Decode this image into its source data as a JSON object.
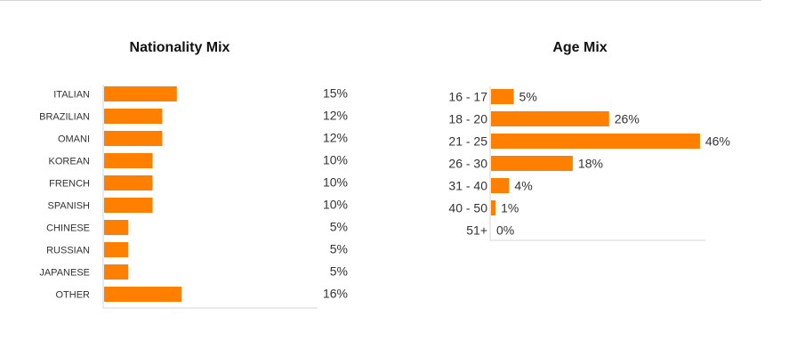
{
  "chart_data": [
    {
      "type": "bar",
      "orientation": "horizontal",
      "title": "Nationality Mix",
      "categories": [
        "ITALIAN",
        "BRAZILIAN",
        "OMANI",
        "KOREAN",
        "FRENCH",
        "SPANISH",
        "CHINESE",
        "RUSSIAN",
        "JAPANESE",
        "OTHER"
      ],
      "values": [
        15,
        12,
        12,
        10,
        10,
        10,
        5,
        5,
        5,
        16
      ],
      "value_labels": [
        "15%",
        "12%",
        "12%",
        "10%",
        "10%",
        "10%",
        "5%",
        "5%",
        "5%",
        "16%"
      ],
      "xlim": [
        0,
        44
      ],
      "data_label_placement": "right-column",
      "bar_color": "#ff7f00",
      "grid": false,
      "legend": "none"
    },
    {
      "type": "bar",
      "orientation": "horizontal",
      "title": "Age Mix",
      "categories": [
        "16 - 17",
        "18 - 20",
        "21 - 25",
        "26 - 30",
        "31 - 40",
        "40 - 50",
        "51+"
      ],
      "values": [
        5,
        26,
        46,
        18,
        4,
        1,
        0
      ],
      "value_labels": [
        "5%",
        "26%",
        "46%",
        "18%",
        "4%",
        "1%",
        "0%"
      ],
      "xlim": [
        0,
        47
      ],
      "data_label_placement": "bar-end",
      "bar_color": "#ff7f00",
      "grid": false,
      "legend": "none"
    }
  ]
}
